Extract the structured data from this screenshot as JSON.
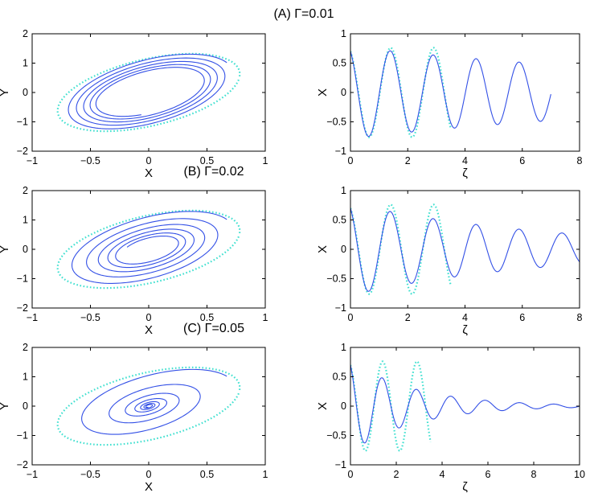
{
  "figure": {
    "colors": {
      "trajectory": "#3350e6",
      "reference": "#40e0d0",
      "axis": "#000000"
    }
  },
  "chart_data": [
    {
      "id": "A-phase",
      "type": "line",
      "title": "(A)  Γ=0.01",
      "xlabel": "X",
      "ylabel": "Y",
      "xlim": [
        -1,
        1
      ],
      "ylim": [
        -2,
        2
      ],
      "xticks": [
        "−1",
        "−0.5",
        "0",
        "0.5",
        "1"
      ],
      "yticks": [
        "2",
        "1",
        "0",
        "−1",
        "−2"
      ],
      "grid": false,
      "series": [
        {
          "style": "dotted",
          "color": "#40e0d0",
          "curve": "ellipse",
          "params": {
            "cx": 0.0,
            "cy": 0.0,
            "semi_major": 0.82,
            "semi_minor": 0.88,
            "start_x": 0.72,
            "start_y": 1.05
          }
        },
        {
          "style": "solid",
          "color": "#3350e6",
          "curve": "damped-spiral",
          "params": {
            "start_x": 0.72,
            "start_y": 1.05,
            "gamma": 0.01,
            "zeta_end": 7
          }
        }
      ]
    },
    {
      "id": "A-time",
      "type": "line",
      "xlabel": "ζ",
      "ylabel": "X",
      "xlim": [
        0,
        8
      ],
      "ylim": [
        -1,
        1
      ],
      "xticks": [
        "0",
        "2",
        "4",
        "6",
        "8"
      ],
      "yticks": [
        "1",
        "0.5",
        "0",
        "−0.5",
        "−1"
      ],
      "grid": false,
      "series": [
        {
          "style": "dotted",
          "color": "#40e0d0",
          "curve": "sine",
          "params": {
            "amplitude": 0.82,
            "period": 1.5,
            "x0": 0.7,
            "zeta_end": 3.5
          }
        },
        {
          "style": "solid",
          "color": "#3350e6",
          "curve": "damped-sine",
          "params": {
            "x0": 0.7,
            "gamma": 0.01,
            "zeta_end": 7
          }
        }
      ]
    },
    {
      "id": "B-phase",
      "type": "line",
      "title": "(B)  Γ=0.02",
      "xlabel": "X",
      "ylabel": "Y",
      "xlim": [
        -1,
        1
      ],
      "ylim": [
        -2,
        2
      ],
      "xticks": [
        "−1",
        "−0.5",
        "0",
        "0.5",
        "1"
      ],
      "yticks": [
        "2",
        "1",
        "0",
        "−1",
        "−2"
      ],
      "grid": false,
      "series": [
        {
          "style": "dotted",
          "color": "#40e0d0",
          "curve": "ellipse",
          "params": {
            "cx": 0.0,
            "cy": 0.0,
            "semi_major": 0.82,
            "semi_minor": 0.88,
            "start_x": 0.72,
            "start_y": 1.05
          }
        },
        {
          "style": "solid",
          "color": "#3350e6",
          "curve": "damped-spiral",
          "params": {
            "start_x": 0.72,
            "start_y": 1.05,
            "gamma": 0.02,
            "zeta_end": 8
          }
        }
      ]
    },
    {
      "id": "B-time",
      "type": "line",
      "xlabel": "ζ",
      "ylabel": "X",
      "xlim": [
        0,
        8
      ],
      "ylim": [
        -1,
        1
      ],
      "xticks": [
        "0",
        "2",
        "4",
        "6",
        "8"
      ],
      "yticks": [
        "1",
        "0.5",
        "0",
        "−0.5",
        "−1"
      ],
      "grid": false,
      "series": [
        {
          "style": "dotted",
          "color": "#40e0d0",
          "curve": "sine",
          "params": {
            "amplitude": 0.82,
            "period": 1.5,
            "x0": 0.7,
            "zeta_end": 3.5
          }
        },
        {
          "style": "solid",
          "color": "#3350e6",
          "curve": "damped-sine",
          "params": {
            "x0": 0.7,
            "gamma": 0.02,
            "zeta_end": 8
          }
        }
      ]
    },
    {
      "id": "C-phase",
      "type": "line",
      "title": "(C)  Γ=0.05",
      "xlabel": "X",
      "ylabel": "Y",
      "xlim": [
        -1,
        1
      ],
      "ylim": [
        -2,
        2
      ],
      "xticks": [
        "−1",
        "−0.5",
        "0",
        "0.5",
        "1"
      ],
      "yticks": [
        "2",
        "1",
        "0",
        "−1",
        "−2"
      ],
      "grid": false,
      "series": [
        {
          "style": "dotted",
          "color": "#40e0d0",
          "curve": "ellipse",
          "params": {
            "cx": 0.0,
            "cy": 0.0,
            "semi_major": 0.82,
            "semi_minor": 0.88,
            "start_x": 0.72,
            "start_y": 1.05
          }
        },
        {
          "style": "solid",
          "color": "#3350e6",
          "curve": "damped-spiral",
          "params": {
            "start_x": 0.72,
            "start_y": 1.05,
            "gamma": 0.05,
            "zeta_end": 10
          }
        }
      ]
    },
    {
      "id": "C-time",
      "type": "line",
      "xlabel": "ζ",
      "ylabel": "X",
      "xlim": [
        0,
        10
      ],
      "ylim": [
        -1,
        1
      ],
      "xticks": [
        "0",
        "2",
        "4",
        "6",
        "8",
        "10"
      ],
      "yticks": [
        "1",
        "0.5",
        "0",
        "−0.5",
        "−1"
      ],
      "grid": false,
      "series": [
        {
          "style": "dotted",
          "color": "#40e0d0",
          "curve": "sine",
          "params": {
            "amplitude": 0.82,
            "period": 1.5,
            "x0": 0.7,
            "zeta_end": 3.5
          }
        },
        {
          "style": "solid",
          "color": "#3350e6",
          "curve": "damped-sine",
          "params": {
            "x0": 0.7,
            "gamma": 0.05,
            "zeta_end": 10
          }
        }
      ]
    }
  ]
}
